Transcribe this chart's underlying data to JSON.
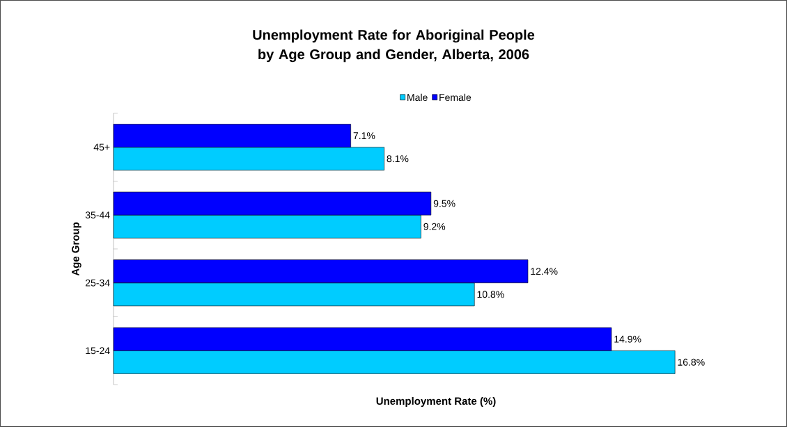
{
  "chart_data": {
    "type": "bar",
    "orientation": "horizontal",
    "title": "Unemployment Rate for Aboriginal People by Age Group and Gender, Alberta, 2006",
    "xlabel": "Unemployment Rate (%)",
    "ylabel": "Age Group",
    "categories": [
      "45+",
      "35-44",
      "25-34",
      "15-24"
    ],
    "series": [
      {
        "name": "Male",
        "color": "#00ccff",
        "values": [
          8.1,
          9.2,
          10.8,
          16.8
        ],
        "value_labels": [
          "8.1%",
          "9.2%",
          "10.8%",
          "16.8%"
        ]
      },
      {
        "name": "Female",
        "color": "#0000ff",
        "values": [
          7.1,
          9.5,
          12.4,
          14.9
        ],
        "value_labels": [
          "7.1%",
          "9.5%",
          "12.4%",
          "14.9%"
        ]
      }
    ],
    "legend": "top"
  }
}
